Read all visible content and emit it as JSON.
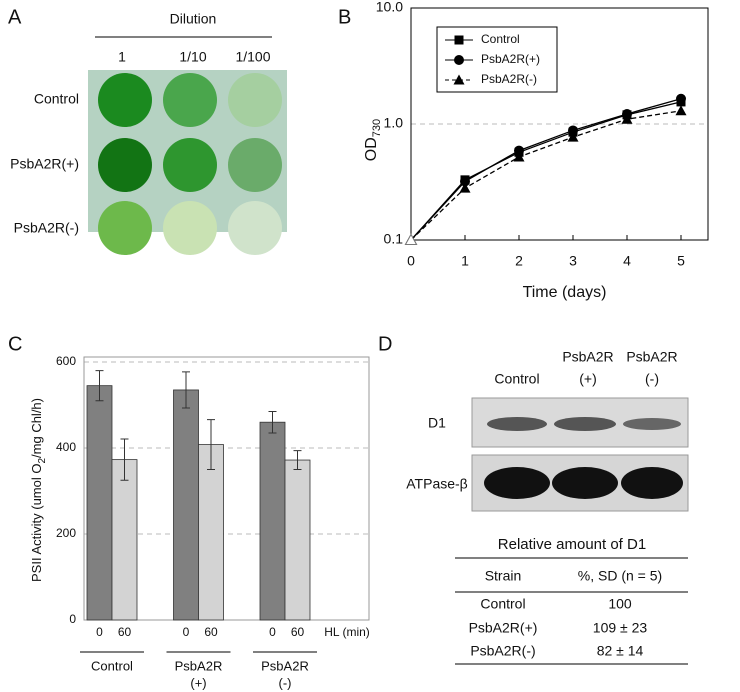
{
  "panel_labels": [
    "A",
    "B",
    "C",
    "D"
  ],
  "panel_a": {
    "header": "Dilution",
    "columns": [
      "1",
      "1/10",
      "1/100"
    ],
    "rows": [
      "Control",
      "PsbA2R(+)",
      "PsbA2R(-)"
    ]
  },
  "chart_data": [
    {
      "type": "line",
      "log_y": true,
      "y_label": "OD",
      "y_label_sub": "730",
      "x_label": "Time (days)",
      "x": [
        0,
        1,
        2,
        3,
        4,
        5
      ],
      "xlim": [
        0,
        5.5
      ],
      "xticks": [
        0,
        1,
        2,
        3,
        4,
        5
      ],
      "ylim": [
        0.1,
        10
      ],
      "yticks": [
        0.1,
        {
          "value": 1,
          "label": "1.0"
        },
        {
          "value": 10,
          "label": "10.0"
        }
      ],
      "grid": true,
      "legend": "upper left",
      "series": [
        {
          "name": "Control",
          "color": "#000000",
          "marker": "square",
          "dashed": false,
          "values": [
            0.1,
            0.33,
            0.57,
            0.85,
            1.2,
            1.55
          ]
        },
        {
          "name": "PsbA2R(+)",
          "color": "#000000",
          "marker": "circle",
          "dashed": false,
          "values": [
            0.1,
            0.32,
            0.59,
            0.88,
            1.22,
            1.65
          ]
        },
        {
          "name": "PsbA2R(-)",
          "color": "#000000",
          "marker": "triangle",
          "dashed": true,
          "values": [
            0.1,
            0.28,
            0.52,
            0.77,
            1.1,
            1.3
          ]
        }
      ]
    },
    {
      "type": "bar",
      "y_label_parts": [
        "PSII Activity (umol O",
        "2",
        "/mg Chl/h)"
      ],
      "x_note": "HL (min)",
      "categories": [
        [
          "Control"
        ],
        [
          "PsbA2R",
          "(+)"
        ],
        [
          "PsbA2R",
          "(-)"
        ]
      ],
      "ylim": [
        0,
        600
      ],
      "yticks": [
        0,
        200,
        400,
        600
      ],
      "grid": true,
      "series": [
        {
          "name": "0",
          "color": "#808080",
          "values": [
            545,
            535,
            460
          ],
          "errors": [
            35,
            42,
            25
          ]
        },
        {
          "name": "60",
          "color": "#d3d3d3",
          "values": [
            373,
            408,
            372
          ],
          "errors": [
            48,
            58,
            22
          ]
        }
      ]
    }
  ],
  "panel_d": {
    "lanes": [
      [
        "Control"
      ],
      [
        "PsbA2R",
        "(+)"
      ],
      [
        "PsbA2R",
        "(-)"
      ]
    ],
    "blots": [
      "D1",
      "ATPase-β"
    ],
    "table": {
      "title": "Relative amount of D1",
      "header": [
        "Strain",
        "%, SD (n = 5)"
      ],
      "rows": [
        [
          "Control",
          "100"
        ],
        [
          "PsbA2R(+)",
          "109 ± 23"
        ],
        [
          "PsbA2R(-)",
          "82 ± 14"
        ]
      ]
    }
  }
}
